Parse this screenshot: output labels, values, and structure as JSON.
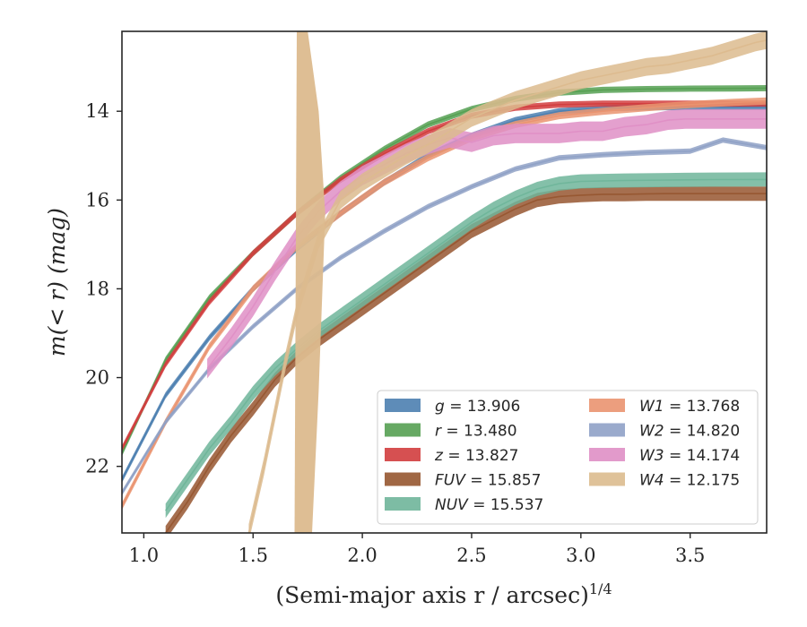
{
  "chart_data": {
    "type": "line",
    "xlabel": "(Semi-major axis r / arcsec)",
    "xlabel_superscript": "1/4",
    "ylabel": "m(< r) (mag)",
    "xlim": [
      0.9,
      3.85
    ],
    "ylim": [
      23.5,
      12.2
    ],
    "y_inverted": true,
    "x_ticks": [
      1.0,
      1.5,
      2.0,
      2.5,
      3.0,
      3.5
    ],
    "x_tick_labels": [
      "1.0",
      "1.5",
      "2.0",
      "2.5",
      "3.0",
      "3.5"
    ],
    "y_ticks": [
      14,
      16,
      18,
      20,
      22
    ],
    "y_tick_labels": [
      "14",
      "16",
      "18",
      "20",
      "22"
    ],
    "grid": false,
    "legend_position": "lower-right",
    "legend_columns": 2,
    "series": [
      {
        "name": "g = 13.906",
        "band": "g",
        "total": "13.906",
        "color": "#4c7fb0",
        "x": [
          0.9,
          1.1,
          1.3,
          1.5,
          1.7,
          1.9,
          2.1,
          2.3,
          2.5,
          2.7,
          2.9,
          3.1,
          3.3,
          3.5,
          3.7,
          3.85
        ],
        "y": [
          22.3,
          20.4,
          19.1,
          18.0,
          17.1,
          16.3,
          15.6,
          15.0,
          14.55,
          14.2,
          14.0,
          13.93,
          13.91,
          13.906,
          13.906,
          13.906
        ],
        "width": 0.07
      },
      {
        "name": "r = 13.480",
        "band": "r",
        "total": "13.480",
        "color": "#55a052",
        "x": [
          0.9,
          1.1,
          1.3,
          1.5,
          1.7,
          1.9,
          2.1,
          2.3,
          2.5,
          2.7,
          2.9,
          3.1,
          3.3,
          3.5,
          3.7,
          3.85
        ],
        "y": [
          21.7,
          19.6,
          18.2,
          17.2,
          16.3,
          15.5,
          14.85,
          14.3,
          13.95,
          13.72,
          13.58,
          13.52,
          13.5,
          13.49,
          13.485,
          13.48
        ],
        "width": 0.07
      },
      {
        "name": "z = 13.827",
        "band": "z",
        "total": "13.827",
        "color": "#d23d3e",
        "x": [
          0.9,
          1.1,
          1.3,
          1.5,
          1.7,
          1.9,
          2.1,
          2.3,
          2.5,
          2.7,
          2.9,
          3.1,
          3.3,
          3.5,
          3.7,
          3.85
        ],
        "y": [
          21.6,
          19.7,
          18.3,
          17.2,
          16.3,
          15.55,
          14.95,
          14.45,
          14.1,
          13.92,
          13.85,
          13.83,
          13.83,
          13.827,
          13.827,
          13.827
        ],
        "width": 0.07
      },
      {
        "name": "FUV = 15.857",
        "band": "FUV",
        "total": "15.857",
        "color": "#965630",
        "x": [
          1.1,
          1.2,
          1.3,
          1.4,
          1.5,
          1.6,
          1.7,
          1.8,
          1.9,
          2.0,
          2.1,
          2.2,
          2.3,
          2.4,
          2.5,
          2.6,
          2.7,
          2.8,
          2.9,
          3.0,
          3.1,
          3.2,
          3.3,
          3.38,
          3.5,
          3.7,
          3.85
        ],
        "y": [
          23.5,
          22.8,
          22.0,
          21.3,
          20.7,
          20.05,
          19.55,
          19.15,
          18.8,
          18.45,
          18.1,
          17.75,
          17.4,
          17.05,
          16.7,
          16.45,
          16.2,
          16.0,
          15.92,
          15.89,
          15.87,
          15.87,
          15.86,
          15.857,
          15.857,
          15.857,
          15.857
        ],
        "width": 0.16
      },
      {
        "name": "NUV = 15.537",
        "band": "NUV",
        "total": "15.537",
        "color": "#6fb59a",
        "x": [
          1.1,
          1.2,
          1.3,
          1.4,
          1.5,
          1.6,
          1.7,
          1.8,
          1.9,
          2.0,
          2.1,
          2.2,
          2.3,
          2.4,
          2.5,
          2.6,
          2.7,
          2.8,
          2.9,
          3.0,
          3.2,
          3.4,
          3.6,
          3.85
        ],
        "y": [
          23.0,
          22.3,
          21.6,
          21.0,
          20.35,
          19.8,
          19.35,
          18.95,
          18.6,
          18.25,
          17.9,
          17.55,
          17.2,
          16.85,
          16.5,
          16.2,
          15.95,
          15.75,
          15.63,
          15.58,
          15.56,
          15.55,
          15.54,
          15.537
        ],
        "width": 0.16
      },
      {
        "name": "W1 = 13.768",
        "band": "W1",
        "total": "13.768",
        "color": "#ea9470",
        "x": [
          0.9,
          1.1,
          1.3,
          1.5,
          1.7,
          1.9,
          2.1,
          2.3,
          2.5,
          2.7,
          2.9,
          3.1,
          3.3,
          3.5,
          3.7,
          3.85
        ],
        "y": [
          22.9,
          21.0,
          19.3,
          18.0,
          17.05,
          16.3,
          15.6,
          15.05,
          14.6,
          14.3,
          14.1,
          14.0,
          13.92,
          13.85,
          13.8,
          13.768
        ],
        "width": 0.08
      },
      {
        "name": "W2 = 14.820",
        "band": "W2",
        "total": "14.820",
        "color": "#8fa1c6",
        "x": [
          0.9,
          1.1,
          1.3,
          1.5,
          1.7,
          1.9,
          2.1,
          2.3,
          2.5,
          2.7,
          2.9,
          3.1,
          3.3,
          3.5,
          3.65,
          3.85
        ],
        "y": [
          22.6,
          21.0,
          19.8,
          18.85,
          18.0,
          17.3,
          16.7,
          16.15,
          15.7,
          15.3,
          15.05,
          14.98,
          14.93,
          14.9,
          14.65,
          14.82
        ],
        "width": 0.06
      },
      {
        "name": "W3 = 14.174",
        "band": "W3",
        "total": "14.174",
        "color": "#df8fc5",
        "x": [
          1.29,
          1.4,
          1.5,
          1.6,
          1.7,
          1.8,
          1.9,
          2.0,
          2.1,
          2.2,
          2.3,
          2.4,
          2.5,
          2.6,
          2.7,
          2.8,
          2.9,
          3.0,
          3.1,
          3.2,
          3.3,
          3.4,
          3.48,
          3.6,
          3.85
        ],
        "y": [
          19.8,
          19.1,
          18.4,
          17.6,
          16.85,
          16.25,
          15.8,
          15.45,
          15.2,
          14.95,
          14.75,
          14.6,
          14.7,
          14.55,
          14.5,
          14.5,
          14.5,
          14.45,
          14.45,
          14.35,
          14.3,
          14.2,
          14.174,
          14.174,
          14.174
        ],
        "width": 0.22
      },
      {
        "name": "W4 = 12.175",
        "band": "W4",
        "total": "12.175",
        "color": "#dcbb8e",
        "x": [
          1.48,
          1.55,
          1.6,
          1.65,
          1.7,
          1.8,
          1.9,
          2.0,
          2.1,
          2.2,
          2.3,
          2.4,
          2.5,
          2.6,
          2.7,
          2.8,
          2.9,
          3.0,
          3.1,
          3.2,
          3.3,
          3.4,
          3.5,
          3.6,
          3.7,
          3.8,
          3.85
        ],
        "y": [
          23.5,
          22.0,
          20.8,
          19.6,
          18.5,
          16.9,
          16.0,
          15.6,
          15.3,
          15.0,
          14.75,
          14.45,
          14.15,
          13.95,
          13.75,
          13.6,
          13.45,
          13.3,
          13.2,
          13.1,
          13.0,
          12.95,
          12.85,
          12.75,
          12.6,
          12.45,
          12.4
        ],
        "width": 0.2
      }
    ]
  }
}
